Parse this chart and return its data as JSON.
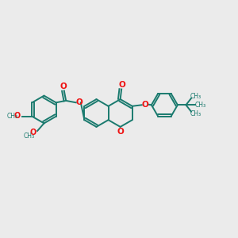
{
  "bg_color": "#ebebeb",
  "bond_color": "#1a7a6e",
  "oxygen_color": "#ee1111",
  "line_width": 1.4,
  "figsize": [
    3.0,
    3.0
  ],
  "dpi": 100,
  "xlim": [
    0,
    10
  ],
  "ylim": [
    0,
    10
  ]
}
